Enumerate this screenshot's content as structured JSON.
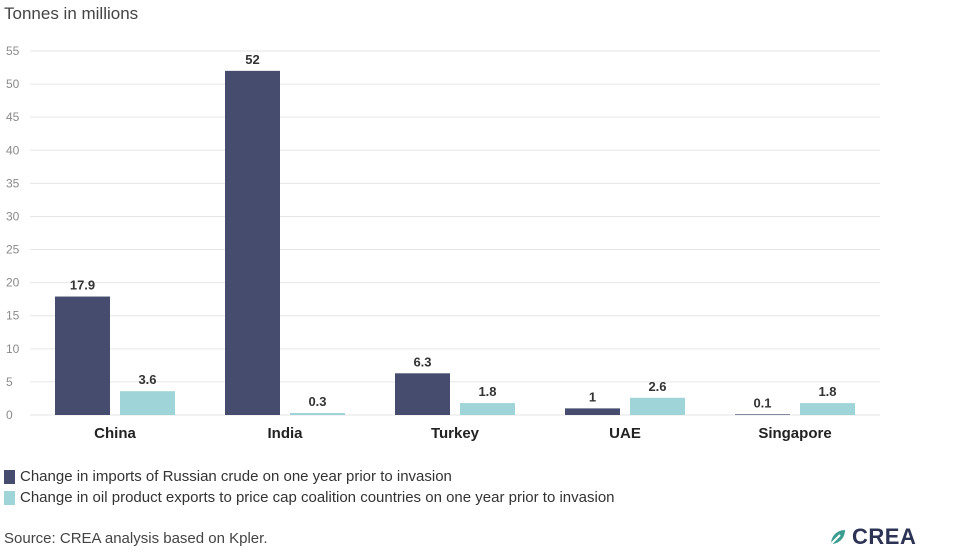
{
  "unit_label": "Tonnes in millions",
  "source": "Source: CREA analysis based on Kpler.",
  "logo_text": "CREA",
  "colors": {
    "series1": "#454c6e",
    "series2": "#9fd4d8",
    "grid": "#e6e6e6",
    "tick": "#8a8a8a"
  },
  "chart_data": {
    "type": "bar",
    "title": "",
    "xlabel": "",
    "ylabel": "Tonnes in millions",
    "ylim": [
      0,
      55
    ],
    "yticks": [
      0,
      5,
      10,
      15,
      20,
      25,
      30,
      35,
      40,
      45,
      50,
      55
    ],
    "grid": true,
    "legend_position": "bottom-left",
    "categories": [
      "China",
      "India",
      "Turkey",
      "UAE",
      "Singapore"
    ],
    "series": [
      {
        "name": "Change in imports of Russian crude on one year prior to invasion",
        "values": [
          17.9,
          52,
          6.3,
          1,
          0.1
        ],
        "labels": [
          "17.9",
          "52",
          "6.3",
          "1",
          "0.1"
        ]
      },
      {
        "name": "Change in oil product exports to price cap coalition countries on one year prior to invasion",
        "values": [
          3.6,
          0.3,
          1.8,
          2.6,
          1.8
        ],
        "labels": [
          "3.6",
          "0.3",
          "1.8",
          "2.6",
          "1.8"
        ]
      }
    ]
  }
}
